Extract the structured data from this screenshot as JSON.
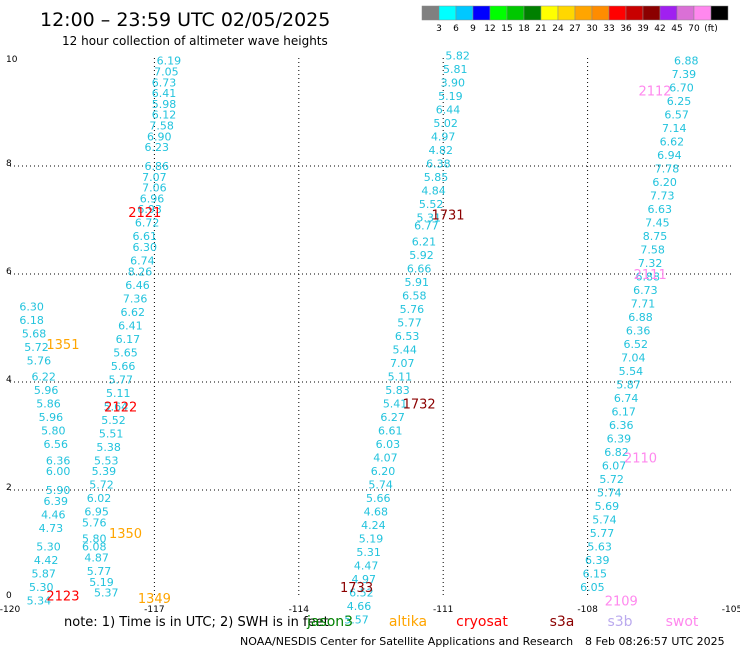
{
  "header": {
    "title": "12:00 – 23:59 UTC 02/05/2025",
    "subtitle": "12 hour collection of altimeter wave heights"
  },
  "colorbar": {
    "colors": [
      "#808080",
      "#00ffff",
      "#00c8ff",
      "#0000ff",
      "#00ff00",
      "#00c800",
      "#008000",
      "#ffff00",
      "#ffd700",
      "#ffa500",
      "#ff8c00",
      "#ff0000",
      "#c80000",
      "#8b0000",
      "#a020f0",
      "#da70d6",
      "#ff88ee",
      "#000000"
    ],
    "labels": [
      "3",
      "6",
      "9",
      "12",
      "15",
      "18",
      "21",
      "24",
      "27",
      "30",
      "33",
      "36",
      "39",
      "42",
      "45",
      "70",
      "(ft)"
    ]
  },
  "chart_data": {
    "type": "scatter",
    "xlim": [
      -120,
      -105
    ],
    "ylim": [
      0,
      10
    ],
    "x_ticks": [
      "-120",
      "-117",
      "-114",
      "-111",
      "-108",
      "-105"
    ],
    "y_ticks": [
      "0",
      "2",
      "4",
      "6",
      "8",
      "10"
    ],
    "grid": true,
    "satellites": [
      {
        "name": "jason3",
        "color": "#008000"
      },
      {
        "name": "altika",
        "color": "#ffa500"
      },
      {
        "name": "cryosat",
        "color": "#ff0000"
      },
      {
        "name": "s3a",
        "color": "#8b0000"
      },
      {
        "name": "s3b",
        "color": "#bbaaee"
      },
      {
        "name": "swot",
        "color": "#ff88ee"
      }
    ],
    "pass_labels": [
      {
        "text": "2121",
        "x": -117.2,
        "y": 7.15,
        "satellite": "cryosat"
      },
      {
        "text": "2122",
        "x": -117.7,
        "y": 3.55,
        "satellite": "cryosat"
      },
      {
        "text": "2123",
        "x": -118.9,
        "y": 0.05,
        "satellite": "cryosat"
      },
      {
        "text": "1351",
        "x": -118.9,
        "y": 4.7,
        "satellite": "altika"
      },
      {
        "text": "1350",
        "x": -117.6,
        "y": 1.2,
        "satellite": "altika"
      },
      {
        "text": "1349",
        "x": -117.0,
        "y": 0.0,
        "satellite": "altika"
      },
      {
        "text": "1731",
        "x": -110.9,
        "y": 7.1,
        "satellite": "s3a"
      },
      {
        "text": "1732",
        "x": -111.5,
        "y": 3.6,
        "satellite": "s3a"
      },
      {
        "text": "1733",
        "x": -112.8,
        "y": 0.2,
        "satellite": "s3a"
      },
      {
        "text": "2112",
        "x": -106.6,
        "y": 9.4,
        "satellite": "swot"
      },
      {
        "text": "2111",
        "x": -106.7,
        "y": 6.0,
        "satellite": "swot"
      },
      {
        "text": "2110",
        "x": -106.9,
        "y": 2.6,
        "satellite": "swot"
      },
      {
        "text": "2109",
        "x": -107.3,
        "y": -0.05,
        "satellite": "swot"
      }
    ],
    "tracks": [
      {
        "satellite": "altika",
        "points": [
          {
            "x": -116.7,
            "y": 9.95,
            "v": "6.19"
          },
          {
            "x": -116.75,
            "y": 9.75,
            "v": "7.05"
          },
          {
            "x": -116.8,
            "y": 9.55,
            "v": "6.73"
          },
          {
            "x": -116.8,
            "y": 9.35,
            "v": "6.41"
          },
          {
            "x": -116.8,
            "y": 9.15,
            "v": "5.98"
          },
          {
            "x": -116.8,
            "y": 8.95,
            "v": "6.12"
          },
          {
            "x": -116.85,
            "y": 8.75,
            "v": "7.58"
          },
          {
            "x": -116.9,
            "y": 8.55,
            "v": "6.90"
          },
          {
            "x": -116.95,
            "y": 8.35,
            "v": "6.23"
          },
          {
            "x": -116.95,
            "y": 8.0,
            "v": "6.86"
          },
          {
            "x": -117.0,
            "y": 7.8,
            "v": "7.07"
          },
          {
            "x": -117.0,
            "y": 7.6,
            "v": "7.06"
          },
          {
            "x": -117.05,
            "y": 7.4,
            "v": "6.96"
          },
          {
            "x": -117.1,
            "y": 7.2,
            "v": "6.93"
          },
          {
            "x": -117.15,
            "y": 6.95,
            "v": "6.72"
          },
          {
            "x": -117.2,
            "y": 6.7,
            "v": "6.61"
          },
          {
            "x": -117.2,
            "y": 6.5,
            "v": "6.30"
          },
          {
            "x": -117.25,
            "y": 6.25,
            "v": "6.74"
          },
          {
            "x": -117.3,
            "y": 6.05,
            "v": "8.26"
          },
          {
            "x": -117.35,
            "y": 5.8,
            "v": "6.46"
          },
          {
            "x": -117.4,
            "y": 5.55,
            "v": "7.36"
          },
          {
            "x": -117.45,
            "y": 5.3,
            "v": "6.62"
          },
          {
            "x": -117.5,
            "y": 5.05,
            "v": "6.41"
          },
          {
            "x": -117.55,
            "y": 4.8,
            "v": "6.17"
          },
          {
            "x": -117.6,
            "y": 4.55,
            "v": "5.65"
          },
          {
            "x": -117.65,
            "y": 4.3,
            "v": "5.66"
          },
          {
            "x": -117.7,
            "y": 4.05,
            "v": "5.77"
          },
          {
            "x": -117.75,
            "y": 3.8,
            "v": "5.11"
          },
          {
            "x": -117.8,
            "y": 3.55,
            "v": "5.64"
          },
          {
            "x": -117.85,
            "y": 3.3,
            "v": "5.52"
          },
          {
            "x": -117.9,
            "y": 3.05,
            "v": "5.51"
          },
          {
            "x": -117.95,
            "y": 2.8,
            "v": "5.38"
          },
          {
            "x": -118.0,
            "y": 2.55,
            "v": "5.53"
          },
          {
            "x": -118.05,
            "y": 2.35,
            "v": "5.39"
          },
          {
            "x": -118.1,
            "y": 2.1,
            "v": "5.72"
          },
          {
            "x": -118.15,
            "y": 1.85,
            "v": "6.02"
          },
          {
            "x": -118.2,
            "y": 1.6,
            "v": "6.95"
          },
          {
            "x": -118.25,
            "y": 1.4,
            "v": "5.76"
          },
          {
            "x": -118.25,
            "y": 1.1,
            "v": "5.80"
          },
          {
            "x": -118.25,
            "y": 0.95,
            "v": "6.08"
          },
          {
            "x": -118.2,
            "y": 0.75,
            "v": "4.87"
          },
          {
            "x": -118.15,
            "y": 0.5,
            "v": "5.77"
          },
          {
            "x": -118.1,
            "y": 0.3,
            "v": "5.19"
          },
          {
            "x": -118.0,
            "y": 0.1,
            "v": "5.37"
          }
        ]
      },
      {
        "satellite": "cryosat",
        "points": [
          {
            "x": -119.55,
            "y": 5.4,
            "v": "6.30"
          },
          {
            "x": -119.55,
            "y": 5.15,
            "v": "6.18"
          },
          {
            "x": -119.5,
            "y": 4.9,
            "v": "5.68"
          },
          {
            "x": -119.45,
            "y": 4.65,
            "v": "5.72"
          },
          {
            "x": -119.4,
            "y": 4.4,
            "v": "5.76"
          },
          {
            "x": -119.3,
            "y": 4.1,
            "v": "6.22"
          },
          {
            "x": -119.25,
            "y": 3.85,
            "v": "5.96"
          },
          {
            "x": -119.2,
            "y": 3.6,
            "v": "5.86"
          },
          {
            "x": -119.15,
            "y": 3.35,
            "v": "5.96"
          },
          {
            "x": -119.1,
            "y": 3.1,
            "v": "5.80"
          },
          {
            "x": -119.05,
            "y": 2.85,
            "v": "6.56"
          },
          {
            "x": -119.0,
            "y": 2.55,
            "v": "6.36"
          },
          {
            "x": -119.0,
            "y": 2.35,
            "v": "6.00"
          },
          {
            "x": -119.0,
            "y": 2.0,
            "v": "5.90"
          },
          {
            "x": -119.05,
            "y": 1.8,
            "v": "6.39"
          },
          {
            "x": -119.1,
            "y": 1.55,
            "v": "4.46"
          },
          {
            "x": -119.15,
            "y": 1.3,
            "v": "4.73"
          },
          {
            "x": -119.2,
            "y": 0.95,
            "v": "5.30"
          },
          {
            "x": -119.25,
            "y": 0.7,
            "v": "4.42"
          },
          {
            "x": -119.3,
            "y": 0.45,
            "v": "5.87"
          },
          {
            "x": -119.35,
            "y": 0.2,
            "v": "5.30"
          },
          {
            "x": -119.4,
            "y": -0.05,
            "v": "5.34"
          }
        ]
      },
      {
        "satellite": "s3a",
        "points": [
          {
            "x": -110.7,
            "y": 10.05,
            "v": "5.82"
          },
          {
            "x": -110.75,
            "y": 9.8,
            "v": "5.81"
          },
          {
            "x": -110.8,
            "y": 9.55,
            "v": "3.90"
          },
          {
            "x": -110.85,
            "y": 9.3,
            "v": "5.19"
          },
          {
            "x": -110.9,
            "y": 9.05,
            "v": "6.44"
          },
          {
            "x": -110.95,
            "y": 8.8,
            "v": "5.02"
          },
          {
            "x": -111.0,
            "y": 8.55,
            "v": "4.97"
          },
          {
            "x": -111.05,
            "y": 8.3,
            "v": "4.82"
          },
          {
            "x": -111.1,
            "y": 8.05,
            "v": "6.38"
          },
          {
            "x": -111.15,
            "y": 7.8,
            "v": "5.85"
          },
          {
            "x": -111.2,
            "y": 7.55,
            "v": "4.84"
          },
          {
            "x": -111.25,
            "y": 7.3,
            "v": "5.52"
          },
          {
            "x": -111.3,
            "y": 7.05,
            "v": "5.31"
          },
          {
            "x": -111.35,
            "y": 6.9,
            "v": "6.77"
          },
          {
            "x": -111.4,
            "y": 6.6,
            "v": "6.21"
          },
          {
            "x": -111.45,
            "y": 6.35,
            "v": "5.92"
          },
          {
            "x": -111.5,
            "y": 6.1,
            "v": "6.66"
          },
          {
            "x": -111.55,
            "y": 5.85,
            "v": "5.91"
          },
          {
            "x": -111.6,
            "y": 5.6,
            "v": "6.58"
          },
          {
            "x": -111.65,
            "y": 5.35,
            "v": "5.76"
          },
          {
            "x": -111.7,
            "y": 5.1,
            "v": "5.77"
          },
          {
            "x": -111.75,
            "y": 4.85,
            "v": "6.53"
          },
          {
            "x": -111.8,
            "y": 4.6,
            "v": "5.44"
          },
          {
            "x": -111.85,
            "y": 4.35,
            "v": "7.07"
          },
          {
            "x": -111.9,
            "y": 4.1,
            "v": "5.11"
          },
          {
            "x": -111.95,
            "y": 3.85,
            "v": "5.83"
          },
          {
            "x": -112.0,
            "y": 3.6,
            "v": "5.41"
          },
          {
            "x": -112.05,
            "y": 3.35,
            "v": "6.27"
          },
          {
            "x": -112.1,
            "y": 3.1,
            "v": "6.61"
          },
          {
            "x": -112.15,
            "y": 2.85,
            "v": "6.03"
          },
          {
            "x": -112.2,
            "y": 2.6,
            "v": "4.07"
          },
          {
            "x": -112.25,
            "y": 2.35,
            "v": "6.20"
          },
          {
            "x": -112.3,
            "y": 2.1,
            "v": "5.74"
          },
          {
            "x": -112.35,
            "y": 1.85,
            "v": "5.66"
          },
          {
            "x": -112.4,
            "y": 1.6,
            "v": "4.68"
          },
          {
            "x": -112.45,
            "y": 1.35,
            "v": "4.24"
          },
          {
            "x": -112.5,
            "y": 1.1,
            "v": "5.19"
          },
          {
            "x": -112.55,
            "y": 0.85,
            "v": "5.31"
          },
          {
            "x": -112.6,
            "y": 0.6,
            "v": "4.47"
          },
          {
            "x": -112.65,
            "y": 0.35,
            "v": "4.97"
          },
          {
            "x": -112.7,
            "y": 0.1,
            "v": "6.52"
          },
          {
            "x": -112.75,
            "y": -0.15,
            "v": "4.66"
          },
          {
            "x": -112.8,
            "y": -0.4,
            "v": "5.57"
          }
        ]
      },
      {
        "satellite": "swot",
        "points": [
          {
            "x": -105.95,
            "y": 9.95,
            "v": "6.88"
          },
          {
            "x": -106.0,
            "y": 9.7,
            "v": "7.39"
          },
          {
            "x": -106.05,
            "y": 9.45,
            "v": "6.70"
          },
          {
            "x": -106.1,
            "y": 9.2,
            "v": "6.25"
          },
          {
            "x": -106.15,
            "y": 8.95,
            "v": "6.57"
          },
          {
            "x": -106.2,
            "y": 8.7,
            "v": "7.14"
          },
          {
            "x": -106.25,
            "y": 8.45,
            "v": "6.62"
          },
          {
            "x": -106.3,
            "y": 8.2,
            "v": "6.94"
          },
          {
            "x": -106.35,
            "y": 7.95,
            "v": "7.78"
          },
          {
            "x": -106.4,
            "y": 7.7,
            "v": "6.20"
          },
          {
            "x": -106.45,
            "y": 7.45,
            "v": "7.73"
          },
          {
            "x": -106.5,
            "y": 7.2,
            "v": "6.63"
          },
          {
            "x": -106.55,
            "y": 6.95,
            "v": "7.45"
          },
          {
            "x": -106.6,
            "y": 6.7,
            "v": "8.75"
          },
          {
            "x": -106.65,
            "y": 6.45,
            "v": "7.58"
          },
          {
            "x": -106.7,
            "y": 6.2,
            "v": "7.32"
          },
          {
            "x": -106.75,
            "y": 5.95,
            "v": "6.88"
          },
          {
            "x": -106.8,
            "y": 5.7,
            "v": "6.73"
          },
          {
            "x": -106.85,
            "y": 5.45,
            "v": "7.71"
          },
          {
            "x": -106.9,
            "y": 5.2,
            "v": "6.88"
          },
          {
            "x": -106.95,
            "y": 4.95,
            "v": "6.36"
          },
          {
            "x": -107.0,
            "y": 4.7,
            "v": "6.52"
          },
          {
            "x": -107.05,
            "y": 4.45,
            "v": "7.04"
          },
          {
            "x": -107.1,
            "y": 4.2,
            "v": "5.54"
          },
          {
            "x": -107.15,
            "y": 3.95,
            "v": "5.87"
          },
          {
            "x": -107.2,
            "y": 3.7,
            "v": "6.74"
          },
          {
            "x": -107.25,
            "y": 3.45,
            "v": "6.17"
          },
          {
            "x": -107.3,
            "y": 3.2,
            "v": "6.36"
          },
          {
            "x": -107.35,
            "y": 2.95,
            "v": "6.39"
          },
          {
            "x": -107.4,
            "y": 2.7,
            "v": "6.82"
          },
          {
            "x": -107.45,
            "y": 2.45,
            "v": "6.07"
          },
          {
            "x": -107.5,
            "y": 2.2,
            "v": "5.72"
          },
          {
            "x": -107.55,
            "y": 1.95,
            "v": "5.74"
          },
          {
            "x": -107.6,
            "y": 1.7,
            "v": "5.69"
          },
          {
            "x": -107.65,
            "y": 1.45,
            "v": "5.74"
          },
          {
            "x": -107.7,
            "y": 1.2,
            "v": "5.77"
          },
          {
            "x": -107.75,
            "y": 0.95,
            "v": "5.63"
          },
          {
            "x": -107.8,
            "y": 0.7,
            "v": "6.39"
          },
          {
            "x": -107.85,
            "y": 0.45,
            "v": "6.15"
          },
          {
            "x": -107.9,
            "y": 0.2,
            "v": "6.05"
          }
        ]
      }
    ]
  },
  "footer": {
    "note": "note:  1) Time is in UTC; 2) SWH is in feet",
    "legend_items": [
      "jason3",
      "altika",
      "cryosat",
      "s3a",
      "s3b",
      "swot"
    ],
    "credit": "NOAA/NESDIS Center for Satellite Applications and Research",
    "timestamp": "8 Feb 08:26:57 UTC 2025"
  }
}
